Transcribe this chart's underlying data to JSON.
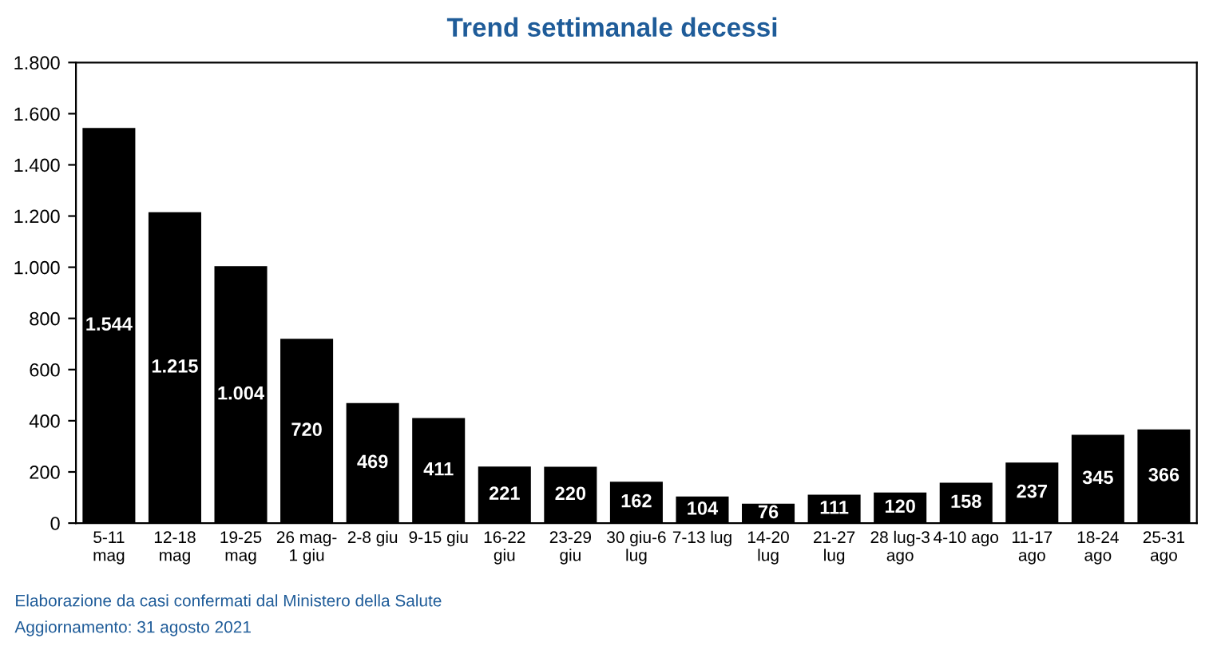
{
  "chart_data": {
    "type": "bar",
    "title": "Trend settimanale decessi",
    "categories": [
      "5-11\nmag",
      "12-18\nmag",
      "19-25\nmag",
      "26 mag-\n1 giu",
      "2-8 giu",
      "9-15 giu",
      "16-22\ngiu",
      "23-29\ngiu",
      "30 giu-6\nlug",
      "7-13 lug",
      "14-20\nlug",
      "21-27\nlug",
      "28 lug-3\nago",
      "4-10 ago",
      "11-17\nago",
      "18-24\nago",
      "25-31\nago"
    ],
    "values": [
      1544,
      1215,
      1004,
      720,
      469,
      411,
      221,
      220,
      162,
      104,
      76,
      111,
      120,
      158,
      237,
      345,
      366
    ],
    "value_labels": [
      "1.544",
      "1.215",
      "1.004",
      "720",
      "469",
      "411",
      "221",
      "220",
      "162",
      "104",
      "76",
      "111",
      "120",
      "158",
      "237",
      "345",
      "366"
    ],
    "color": "#000000",
    "ylim": [
      0,
      1800
    ],
    "yticks": [
      0,
      200,
      400,
      600,
      800,
      {
        "value": 1000,
        "label": "1.000"
      },
      {
        "value": 1200,
        "label": "1.200"
      },
      {
        "value": 1400,
        "label": "1.400"
      },
      {
        "value": 1600,
        "label": "1.600"
      },
      {
        "value": 1800,
        "label": "1.800"
      }
    ],
    "grid": false,
    "annotations": [
      "Elaborazione da casi confermati dal Ministero della Salute",
      "Aggiornamento: 31 agosto 2021"
    ]
  }
}
